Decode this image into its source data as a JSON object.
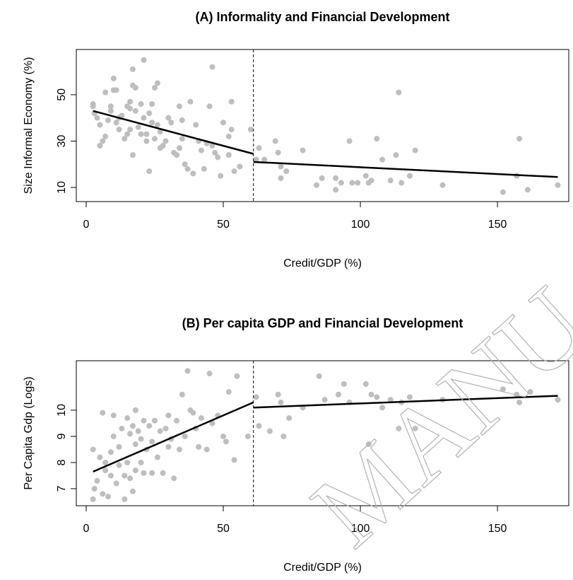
{
  "chart_data": [
    {
      "type": "scatter",
      "title": "(A) Informality and Financial Development",
      "xlabel": "Credit/GDP (%)",
      "ylabel": "Size Informal Economy (%)",
      "color": "#bebebe",
      "line_color": "#000000",
      "xlim": [
        -3.6,
        176
      ],
      "ylim": [
        3.9,
        69.5
      ],
      "xticks": [
        0,
        50,
        100,
        150
      ],
      "yticks": [
        10,
        30,
        50
      ],
      "threshold": 61,
      "fit": [
        {
          "x": [
            2.5,
            61
          ],
          "y": [
            43,
            24.5
          ]
        },
        {
          "x": [
            61,
            172
          ],
          "y": [
            21,
            14.5
          ]
        }
      ],
      "x": [
        2.5,
        2.5,
        3,
        4,
        5,
        5,
        6,
        7,
        7,
        8,
        9,
        9,
        10,
        10,
        11,
        11,
        12,
        12,
        13,
        14,
        15,
        15,
        16,
        16,
        16,
        17,
        17,
        17,
        18,
        18,
        19,
        20,
        20,
        21,
        21,
        22,
        22,
        23,
        23,
        24,
        24,
        25,
        25,
        26,
        26,
        27,
        27,
        28,
        29,
        30,
        31,
        32,
        33,
        34,
        34,
        35,
        35,
        36,
        37,
        38,
        39,
        40,
        41,
        42,
        43,
        44,
        45,
        46,
        46,
        47,
        48,
        49,
        50,
        52,
        52,
        53,
        53,
        54,
        56,
        60,
        62,
        63,
        65,
        69,
        70,
        71,
        71,
        73,
        79,
        84,
        86,
        91,
        91,
        93,
        96,
        97,
        99,
        102,
        103,
        104,
        106,
        108,
        111,
        113,
        114,
        115,
        118,
        120,
        130,
        152,
        157,
        158,
        161,
        172
      ],
      "y": [
        46,
        45,
        42,
        40,
        37,
        28,
        30,
        32,
        51,
        39,
        45,
        43,
        52,
        57,
        52,
        38,
        35,
        40,
        41,
        31,
        45,
        33,
        44,
        47,
        35,
        61,
        54,
        24,
        53,
        43,
        36,
        33,
        46,
        65,
        40,
        30,
        33,
        42,
        17,
        38,
        46,
        53,
        31,
        55,
        37,
        34,
        27,
        28,
        30,
        40,
        38,
        25,
        24,
        27,
        45,
        39,
        31,
        20,
        18,
        47,
        16,
        37,
        30,
        26,
        18,
        29,
        45,
        28,
        62,
        25,
        23,
        15,
        38,
        32,
        24,
        35,
        47,
        17,
        19,
        35,
        22,
        27,
        22,
        30,
        25,
        19,
        14,
        17,
        26,
        11,
        14,
        14,
        9,
        12,
        30,
        12,
        12,
        15,
        12,
        13,
        31,
        22,
        13,
        24,
        51,
        12,
        15,
        26,
        11,
        8,
        15,
        31,
        9,
        11
      ]
    },
    {
      "type": "scatter",
      "title": "(B) Per capita GDP and Financial Development",
      "xlabel": "Credit/GDP (%)",
      "ylabel": "Per Capita Gdp (Logs)",
      "color": "#bebebe",
      "line_color": "#000000",
      "xlim": [
        -3.6,
        176
      ],
      "ylim": [
        6.35,
        11.89
      ],
      "xticks": [
        0,
        50,
        100,
        150
      ],
      "yticks": [
        7,
        8,
        9,
        10
      ],
      "threshold": 61,
      "fit": [
        {
          "x": [
            2.5,
            61
          ],
          "y": [
            7.65,
            10.3
          ]
        },
        {
          "x": [
            61,
            172
          ],
          "y": [
            10.1,
            10.55
          ]
        }
      ],
      "x": [
        2.5,
        2.5,
        3,
        4,
        5,
        6,
        6,
        7,
        7,
        8,
        9,
        9,
        10,
        10,
        11,
        12,
        12,
        13,
        14,
        14,
        15,
        15,
        16,
        16,
        17,
        17,
        18,
        18,
        18,
        19,
        20,
        20,
        21,
        21,
        22,
        23,
        24,
        24,
        25,
        26,
        27,
        28,
        29,
        30,
        30,
        31,
        32,
        33,
        34,
        35,
        36,
        37,
        38,
        39,
        40,
        41,
        42,
        44,
        45,
        46,
        48,
        50,
        51,
        52,
        54,
        55,
        59,
        62,
        63,
        67,
        70,
        71,
        72,
        74,
        79,
        85,
        87,
        92,
        94,
        96,
        102,
        103,
        104,
        106,
        108,
        111,
        114,
        115,
        118,
        120,
        130,
        152,
        157,
        158,
        162,
        172
      ],
      "y": [
        8.5,
        6.6,
        7.0,
        7.3,
        8.2,
        9.9,
        6.8,
        7.7,
        8.0,
        6.7,
        7.5,
        8.4,
        9.8,
        9.0,
        7.2,
        8.6,
        7.9,
        9.3,
        7.5,
        6.6,
        8.0,
        9.7,
        9.1,
        7.4,
        9.4,
        6.9,
        10.0,
        8.7,
        7.7,
        9.2,
        8.0,
        8.9,
        9.6,
        7.6,
        8.5,
        9.4,
        8.8,
        7.6,
        9.6,
        8.2,
        9.2,
        7.6,
        9.3,
        9.8,
        8.6,
        8.9,
        7.4,
        9.6,
        8.5,
        10.6,
        9.0,
        11.5,
        10.0,
        9.9,
        9.3,
        8.6,
        9.7,
        8.5,
        11.4,
        9.5,
        9.8,
        9.0,
        8.8,
        10.7,
        8.1,
        11.3,
        9.0,
        10.5,
        9.4,
        9.2,
        10.6,
        10.3,
        9.0,
        9.7,
        10.1,
        11.3,
        10.4,
        10.6,
        11.0,
        10.3,
        11.0,
        8.7,
        10.6,
        10.5,
        10.1,
        10.4,
        9.3,
        10.3,
        10.5,
        9.3,
        10.4,
        10.8,
        10.6,
        10.3,
        10.7,
        10.4
      ]
    }
  ],
  "watermark": "MANU"
}
